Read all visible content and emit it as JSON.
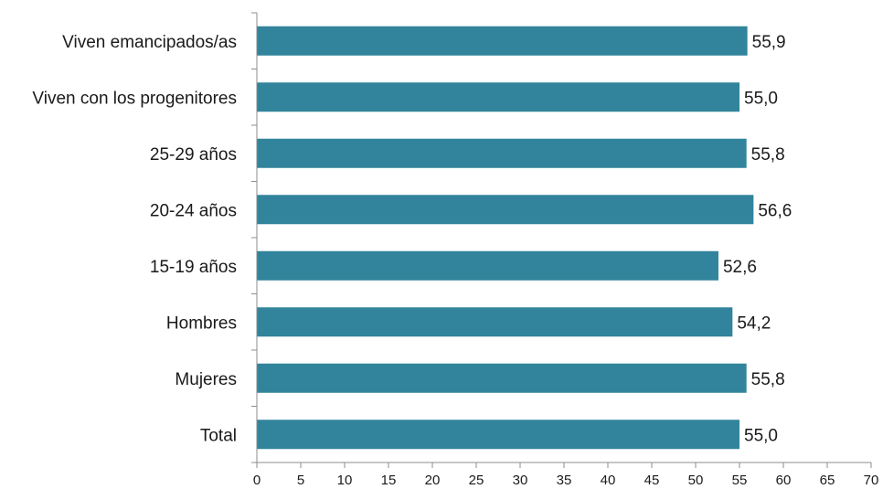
{
  "chart_data": {
    "type": "bar",
    "orientation": "horizontal",
    "categories": [
      "Viven emancipados/as",
      "Viven con los progenitores",
      "25-29 años",
      "20-24 años",
      "15-19 años",
      "Hombres",
      "Mujeres",
      "Total"
    ],
    "values": [
      55.9,
      55.0,
      55.8,
      56.6,
      52.6,
      54.2,
      55.8,
      55.0
    ],
    "value_labels": [
      "55,9",
      "55,0",
      "55,8",
      "56,6",
      "52,6",
      "54,2",
      "55,8",
      "55,0"
    ],
    "xlim": [
      0,
      70
    ],
    "xticks": [
      0,
      5,
      10,
      15,
      20,
      25,
      30,
      35,
      40,
      45,
      50,
      55,
      60,
      65,
      70
    ],
    "title": "",
    "xlabel": "",
    "ylabel": "",
    "grid": false,
    "legend": "none",
    "bar_color": "#31849B"
  }
}
